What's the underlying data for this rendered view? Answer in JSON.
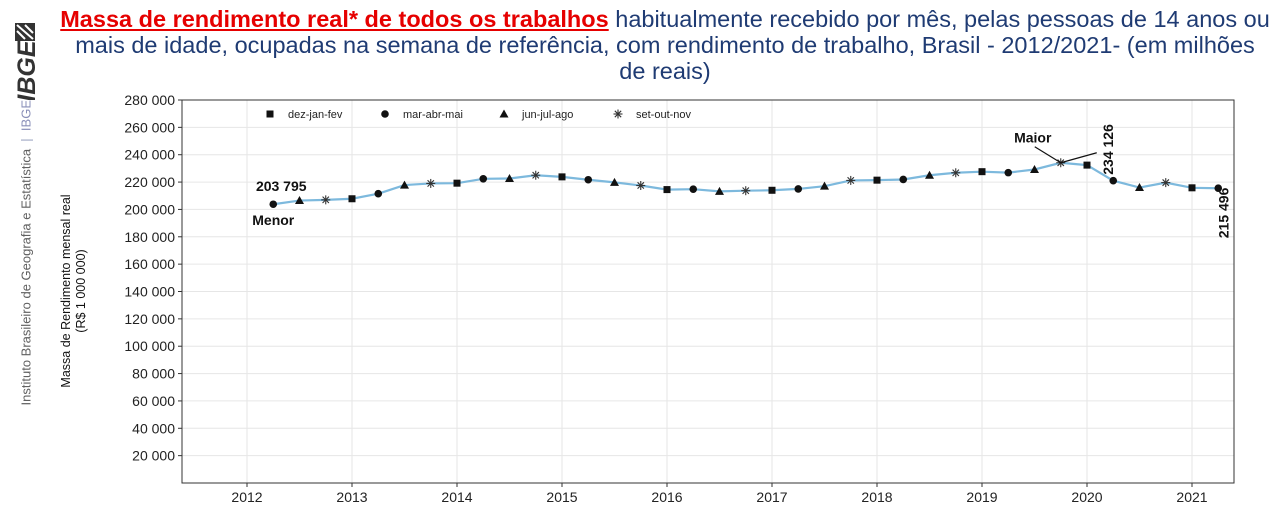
{
  "title": {
    "highlight": "Massa de rendimento real* de todos os trabalhos",
    "rest": " habitualmente recebido por mês, pelas pessoas de 14 anos ou mais de idade, ocupadas na semana de referência, com rendimento de trabalho, Brasil - 2012/2021- (em milhões de reais)"
  },
  "sidebar": {
    "logo_text": "IBGE",
    "vertical_text": "Instituto Brasileiro de Geografia e Estatística",
    "small_logo": "IBGE"
  },
  "colors": {
    "line": "#7db9dd",
    "title": "#1f3b73",
    "highlight": "#e60000",
    "grid": "#e6e6e6"
  },
  "chart_data": {
    "type": "line",
    "ylabel": [
      "Massa de Rendimento mensal real",
      "(R$ 1 000 000)"
    ],
    "ylim": [
      0,
      280000
    ],
    "yticks": [
      20000,
      40000,
      60000,
      80000,
      100000,
      120000,
      140000,
      160000,
      180000,
      200000,
      220000,
      240000,
      260000,
      280000
    ],
    "ytick_labels": [
      "20 000",
      "40 000",
      "60 000",
      "80 000",
      "100 000",
      "120 000",
      "140 000",
      "160 000",
      "180 000",
      "200 000",
      "220 000",
      "240 000",
      "260 000",
      "280 000"
    ],
    "xticks": [
      "2012",
      "2013",
      "2014",
      "2015",
      "2016",
      "2017",
      "2018",
      "2019",
      "2020",
      "2021"
    ],
    "grid": true,
    "legend_position": "top-left",
    "legend": [
      {
        "marker": "square",
        "label": "dez-jan-fev"
      },
      {
        "marker": "circle",
        "label": "mar-abr-mai"
      },
      {
        "marker": "triangle",
        "label": "jun-jul-ago"
      },
      {
        "marker": "asterisk",
        "label": "set-out-nov"
      }
    ],
    "points": [
      {
        "x": "2012 mar-abr-mai",
        "y": 203795,
        "marker": "circle"
      },
      {
        "x": "2012 jun-jul-ago",
        "y": 206500,
        "marker": "triangle"
      },
      {
        "x": "2012 set-out-nov",
        "y": 207000,
        "marker": "asterisk"
      },
      {
        "x": "2013 dez-jan-fev",
        "y": 207800,
        "marker": "square"
      },
      {
        "x": "2013 mar-abr-mai",
        "y": 211500,
        "marker": "circle"
      },
      {
        "x": "2013 jun-jul-ago",
        "y": 217800,
        "marker": "triangle"
      },
      {
        "x": "2013 set-out-nov",
        "y": 219000,
        "marker": "asterisk"
      },
      {
        "x": "2014 dez-jan-fev",
        "y": 219200,
        "marker": "square"
      },
      {
        "x": "2014 mar-abr-mai",
        "y": 222400,
        "marker": "circle"
      },
      {
        "x": "2014 jun-jul-ago",
        "y": 222600,
        "marker": "triangle"
      },
      {
        "x": "2014 set-out-nov",
        "y": 225000,
        "marker": "asterisk"
      },
      {
        "x": "2015 dez-jan-fev",
        "y": 223800,
        "marker": "square"
      },
      {
        "x": "2015 mar-abr-mai",
        "y": 221700,
        "marker": "circle"
      },
      {
        "x": "2015 jun-jul-ago",
        "y": 219800,
        "marker": "triangle"
      },
      {
        "x": "2015 set-out-nov",
        "y": 217500,
        "marker": "asterisk"
      },
      {
        "x": "2016 dez-jan-fev",
        "y": 214500,
        "marker": "square"
      },
      {
        "x": "2016 mar-abr-mai",
        "y": 214800,
        "marker": "circle"
      },
      {
        "x": "2016 jun-jul-ago",
        "y": 213200,
        "marker": "triangle"
      },
      {
        "x": "2016 set-out-nov",
        "y": 213700,
        "marker": "asterisk"
      },
      {
        "x": "2017 dez-jan-fev",
        "y": 214000,
        "marker": "square"
      },
      {
        "x": "2017 mar-abr-mai",
        "y": 215000,
        "marker": "circle"
      },
      {
        "x": "2017 jun-jul-ago",
        "y": 217000,
        "marker": "triangle"
      },
      {
        "x": "2017 set-out-nov",
        "y": 221200,
        "marker": "asterisk"
      },
      {
        "x": "2018 dez-jan-fev",
        "y": 221400,
        "marker": "square"
      },
      {
        "x": "2018 mar-abr-mai",
        "y": 221900,
        "marker": "circle"
      },
      {
        "x": "2018 jun-jul-ago",
        "y": 225000,
        "marker": "triangle"
      },
      {
        "x": "2018 set-out-nov",
        "y": 226800,
        "marker": "asterisk"
      },
      {
        "x": "2019 dez-jan-fev",
        "y": 227600,
        "marker": "square"
      },
      {
        "x": "2019 mar-abr-mai",
        "y": 226900,
        "marker": "circle"
      },
      {
        "x": "2019 jun-jul-ago",
        "y": 229200,
        "marker": "triangle"
      },
      {
        "x": "2019 set-out-nov",
        "y": 234126,
        "marker": "asterisk"
      },
      {
        "x": "2020 dez-jan-fev",
        "y": 232400,
        "marker": "square"
      },
      {
        "x": "2020 mar-abr-mai",
        "y": 221000,
        "marker": "circle"
      },
      {
        "x": "2020 jun-jul-ago",
        "y": 216000,
        "marker": "triangle"
      },
      {
        "x": "2020 set-out-nov",
        "y": 219600,
        "marker": "asterisk"
      },
      {
        "x": "2021 dez-jan-fev",
        "y": 215800,
        "marker": "square"
      },
      {
        "x": "2021 mar-abr-mai",
        "y": 215496,
        "marker": "circle"
      }
    ],
    "annotations": {
      "min": {
        "label": "Menor",
        "value_label": "203 795"
      },
      "max": {
        "label": "Maior",
        "value_label": "234 126"
      },
      "last": {
        "value_label": "215 496"
      }
    }
  }
}
